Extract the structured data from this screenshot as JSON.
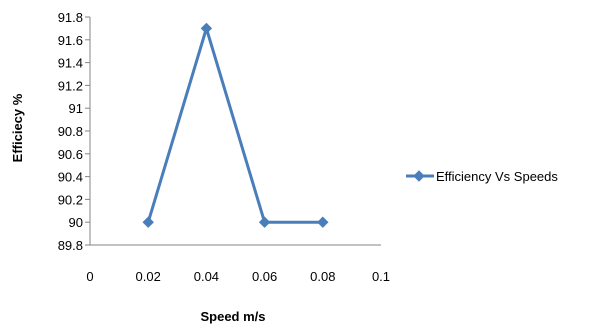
{
  "chart_data": {
    "type": "scatter",
    "title": "",
    "xlabel": "Speed m/s",
    "ylabel": "Efficiecy %",
    "xlim": [
      0,
      0.1
    ],
    "ylim": [
      89.8,
      91.8
    ],
    "x_ticks": [
      "0",
      "0.02",
      "0.04",
      "0.06",
      "0.08",
      "0.1"
    ],
    "y_ticks": [
      "89.8",
      "90",
      "90.2",
      "90.4",
      "90.6",
      "90.8",
      "91",
      "91.2",
      "91.4",
      "91.6",
      "91.8"
    ],
    "grid": false,
    "legend_position": "right",
    "series": [
      {
        "name": "Efficiency Vs Speeds",
        "color": "#4a7ebb",
        "marker": "diamond",
        "x": [
          0.02,
          0.04,
          0.06,
          0.08
        ],
        "y": [
          90,
          91.7,
          90,
          90
        ]
      }
    ]
  }
}
